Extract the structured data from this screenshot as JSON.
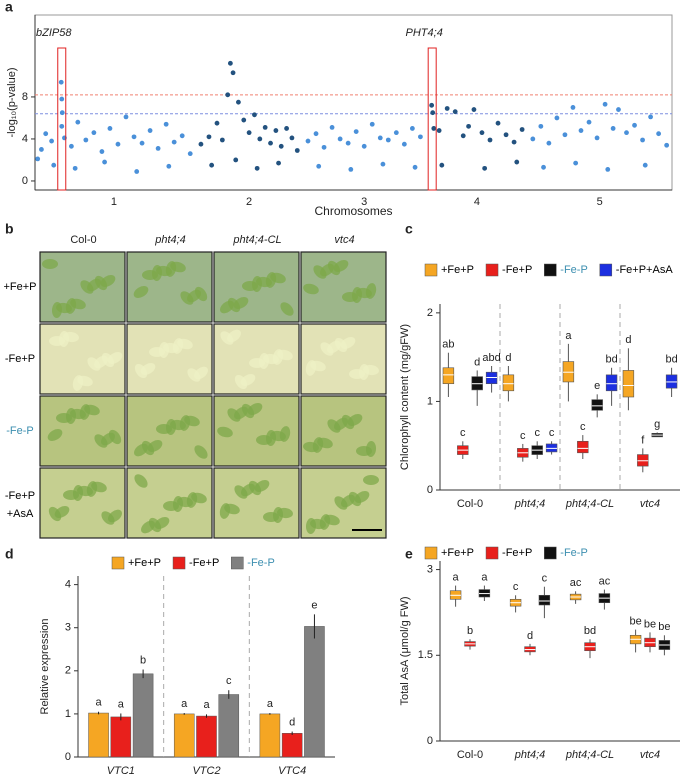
{
  "chart_data": [
    {
      "type": "manhattan",
      "panel": "a",
      "ylabel": "-log₁₀(p-value)",
      "xlabel": "Chromosomes",
      "ylim": [
        -0.86,
        15.8
      ],
      "yticks": [
        0,
        4,
        8
      ],
      "xlim": [
        0,
        119
      ],
      "thresholds": [
        {
          "value": 8.2,
          "color": "#f08070"
        },
        {
          "value": 6.4,
          "color": "#7f8fe0"
        }
      ],
      "annotations": [
        {
          "text": "bZIP58",
          "x": 5
        },
        {
          "text": "PHT4;4",
          "x": 74.2
        }
      ],
      "series": [
        {
          "name": "1",
          "color": "#4a90d9",
          "x": [
            0.5,
            1.2,
            2.0,
            3.1,
            4.9,
            5.0,
            5.1,
            5.0,
            5.5,
            6.8,
            8.0,
            9.5,
            11,
            12.5,
            14,
            15.5,
            17,
            18.5,
            20,
            21.5,
            23,
            24.5,
            26,
            27.5,
            29,
            3.5,
            7.5,
            13,
            19,
            25
          ],
          "values": [
            2.1,
            3.0,
            4.5,
            3.8,
            9.4,
            7.8,
            6.5,
            5.2,
            4.1,
            3.3,
            5.6,
            3.9,
            4.6,
            2.8,
            5.0,
            3.5,
            6.1,
            4.2,
            3.6,
            4.8,
            3.1,
            5.4,
            3.7,
            4.3,
            2.6,
            1.5,
            1.2,
            1.8,
            0.9,
            1.4
          ]
        },
        {
          "name": "2",
          "color": "#23527f",
          "x": [
            31,
            32.5,
            34,
            35,
            36,
            36.5,
            37,
            38,
            39,
            40,
            41,
            42,
            43,
            44,
            45,
            46,
            47,
            48,
            49,
            33,
            37.5,
            41.5,
            45.5
          ],
          "values": [
            3.5,
            4.2,
            5.5,
            3.9,
            8.2,
            11.2,
            10.3,
            7.5,
            5.8,
            4.6,
            6.3,
            4.0,
            5.1,
            3.6,
            4.8,
            3.3,
            5.0,
            4.1,
            2.9,
            1.5,
            2.0,
            1.2,
            1.7
          ]
        },
        {
          "name": "3",
          "color": "#4a90d9",
          "x": [
            51,
            52.5,
            54,
            55.5,
            57,
            58.5,
            60,
            61.5,
            63,
            64.5,
            66,
            67.5,
            69,
            70.5,
            72,
            53,
            59,
            65,
            71
          ],
          "values": [
            3.8,
            4.5,
            3.2,
            5.1,
            4.0,
            3.6,
            4.7,
            3.3,
            5.4,
            4.1,
            3.9,
            4.6,
            3.5,
            5.0,
            4.2,
            1.4,
            1.1,
            1.6,
            1.3
          ]
        },
        {
          "name": "4",
          "color": "#23527f",
          "x": [
            74.1,
            74.3,
            74.5,
            75.5,
            77,
            78.5,
            80,
            81,
            82,
            83.5,
            85,
            86.5,
            88,
            89.5,
            91,
            76,
            84,
            90
          ],
          "values": [
            7.2,
            6.5,
            5.0,
            4.8,
            6.9,
            6.6,
            4.3,
            5.2,
            6.8,
            4.6,
            3.9,
            5.5,
            4.4,
            3.7,
            4.9,
            1.5,
            1.2,
            1.8
          ]
        },
        {
          "name": "5",
          "color": "#4a90d9",
          "x": [
            93,
            94.5,
            96,
            97.5,
            99,
            100.5,
            102,
            103.5,
            105,
            106.5,
            108,
            109,
            110.5,
            112,
            113.5,
            115,
            116.5,
            118,
            95,
            101,
            107,
            114
          ],
          "values": [
            4.0,
            5.2,
            3.6,
            6.0,
            4.4,
            7.0,
            4.8,
            5.6,
            4.1,
            7.3,
            5.0,
            6.8,
            4.6,
            5.3,
            3.9,
            6.1,
            4.5,
            3.4,
            1.3,
            1.7,
            1.1,
            1.5
          ]
        }
      ]
    },
    {
      "type": "image-grid",
      "panel": "b",
      "columns": [
        {
          "text": "Col-0",
          "italic": false
        },
        {
          "text": "pht4;4",
          "italic": true
        },
        {
          "text": "pht4;4-CL",
          "italic": true
        },
        {
          "text": "vtc4",
          "italic": true
        }
      ],
      "rows": [
        {
          "lines": [
            "+Fe+P"
          ],
          "color": "#000000",
          "tone": "#9db68a"
        },
        {
          "lines": [
            "-Fe+P"
          ],
          "color": "#000000",
          "tone": "#e2e2b6"
        },
        {
          "lines": [
            "-Fe-P"
          ],
          "color": "#3d8fb0",
          "tone": "#b7c47f"
        },
        {
          "lines": [
            "-Fe+P",
            "+AsA"
          ],
          "color": "#000000",
          "tone": "#c5cf90"
        }
      ]
    },
    {
      "type": "box",
      "panel": "c",
      "ylabel": "Chlorophyll content (mg/gFW)",
      "ylim": [
        0,
        2.1
      ],
      "yticks": [
        0,
        1,
        2
      ],
      "categories": [
        "Col-0",
        "pht4;4",
        "pht4;4-CL",
        "vtc4"
      ],
      "category_italic": [
        false,
        true,
        true,
        true
      ],
      "separators": true,
      "series": [
        {
          "name": "+Fe+P",
          "color": "#f5a623",
          "label_color": "#000000",
          "median": [
            1.3,
            1.2,
            1.33,
            1.18
          ],
          "q1": [
            1.2,
            1.12,
            1.22,
            1.05
          ],
          "q3": [
            1.38,
            1.3,
            1.45,
            1.35
          ],
          "whisker_low": [
            1.05,
            1.0,
            1.0,
            0.9
          ],
          "whisker_high": [
            1.55,
            1.4,
            1.65,
            1.6
          ],
          "letters": [
            "ab",
            "d",
            "a",
            "d"
          ]
        },
        {
          "name": "-Fe+P",
          "color": "#e8201c",
          "label_color": "#000000",
          "median": [
            0.45,
            0.42,
            0.47,
            0.33
          ],
          "q1": [
            0.4,
            0.37,
            0.42,
            0.27
          ],
          "q3": [
            0.5,
            0.47,
            0.55,
            0.4
          ],
          "whisker_low": [
            0.35,
            0.32,
            0.35,
            0.2
          ],
          "whisker_high": [
            0.55,
            0.52,
            0.62,
            0.47
          ],
          "letters": [
            "c",
            "c",
            "c",
            "f"
          ]
        },
        {
          "name": "-Fe-P",
          "color": "#111111",
          "label_color": "#3d8fb0",
          "median": [
            1.2,
            0.45,
            0.95,
            0.62
          ],
          "q1": [
            1.13,
            0.4,
            0.9,
            0.6
          ],
          "q3": [
            1.28,
            0.5,
            1.02,
            0.64
          ],
          "whisker_low": [
            0.95,
            0.35,
            0.82,
            0.6
          ],
          "whisker_high": [
            1.35,
            0.55,
            1.08,
            0.65
          ],
          "letters": [
            "d",
            "c",
            "e",
            "g"
          ]
        },
        {
          "name": "-Fe+P+AsA",
          "color": "#1c2fe0",
          "label_color": "#000000",
          "median": [
            1.27,
            0.47,
            1.2,
            1.22
          ],
          "q1": [
            1.2,
            0.43,
            1.12,
            1.15
          ],
          "q3": [
            1.33,
            0.52,
            1.3,
            1.3
          ],
          "whisker_low": [
            1.1,
            0.4,
            0.95,
            1.05
          ],
          "whisker_high": [
            1.4,
            0.55,
            1.38,
            1.38
          ],
          "letters": [
            "abd",
            "c",
            "bd",
            "bd"
          ]
        }
      ]
    },
    {
      "type": "bar",
      "panel": "d",
      "ylabel": "Relative expression",
      "ylim": [
        0,
        4.2
      ],
      "yticks": [
        0,
        1,
        2,
        3,
        4
      ],
      "categories": [
        "VTC1",
        "VTC2",
        "VTC4"
      ],
      "category_italic": [
        true,
        true,
        true
      ],
      "separators": true,
      "series": [
        {
          "name": "+Fe+P",
          "color": "#f5a623",
          "label_color": "#000000",
          "values": [
            1.02,
            1.0,
            1.0
          ],
          "errors": [
            0.03,
            0.02,
            0.02
          ],
          "letters": [
            "a",
            "a",
            "a"
          ]
        },
        {
          "name": "-Fe+P",
          "color": "#e8201c",
          "label_color": "#000000",
          "values": [
            0.93,
            0.95,
            0.55
          ],
          "errors": [
            0.08,
            0.04,
            0.04
          ],
          "letters": [
            "a",
            "a",
            "d"
          ]
        },
        {
          "name": "-Fe-P",
          "color": "#808080",
          "label_color": "#3d8fb0",
          "values": [
            1.93,
            1.45,
            3.03
          ],
          "errors": [
            0.1,
            0.1,
            0.28
          ],
          "letters": [
            "b",
            "c",
            "e"
          ]
        }
      ]
    },
    {
      "type": "box",
      "panel": "e",
      "ylabel": "Total AsA  (μmol/g FW)",
      "ylim": [
        0,
        3.15
      ],
      "yticks": [
        0,
        1.5,
        3
      ],
      "categories": [
        "Col-0",
        "pht4;4",
        "pht4;4-CL",
        "vtc4"
      ],
      "category_italic": [
        false,
        true,
        true,
        true
      ],
      "separators": false,
      "series": [
        {
          "name": "+Fe+P",
          "color": "#f5a623",
          "label_color": "#000000",
          "median": [
            2.55,
            2.42,
            2.52,
            1.78
          ],
          "q1": [
            2.48,
            2.36,
            2.47,
            1.7
          ],
          "q3": [
            2.63,
            2.48,
            2.57,
            1.85
          ],
          "whisker_low": [
            2.35,
            2.25,
            2.4,
            1.55
          ],
          "whisker_high": [
            2.72,
            2.55,
            2.62,
            1.95
          ],
          "letters": [
            "a",
            "c",
            "ac",
            "be"
          ]
        },
        {
          "name": "-Fe+P",
          "color": "#e8201c",
          "label_color": "#000000",
          "median": [
            1.7,
            1.6,
            1.65,
            1.72
          ],
          "q1": [
            1.66,
            1.56,
            1.58,
            1.65
          ],
          "q3": [
            1.74,
            1.65,
            1.72,
            1.8
          ],
          "whisker_low": [
            1.6,
            1.5,
            1.45,
            1.55
          ],
          "whisker_high": [
            1.78,
            1.7,
            1.78,
            1.9
          ],
          "letters": [
            "b",
            "d",
            "bd",
            "be"
          ]
        },
        {
          "name": "-Fe-P",
          "color": "#111111",
          "label_color": "#3d8fb0",
          "median": [
            2.58,
            2.45,
            2.5,
            1.68
          ],
          "q1": [
            2.52,
            2.38,
            2.42,
            1.6
          ],
          "q3": [
            2.65,
            2.55,
            2.58,
            1.76
          ],
          "whisker_low": [
            2.45,
            2.15,
            2.3,
            1.5
          ],
          "whisker_high": [
            2.72,
            2.7,
            2.65,
            1.85
          ],
          "letters": [
            "a",
            "c",
            "ac",
            "be"
          ]
        }
      ]
    }
  ]
}
